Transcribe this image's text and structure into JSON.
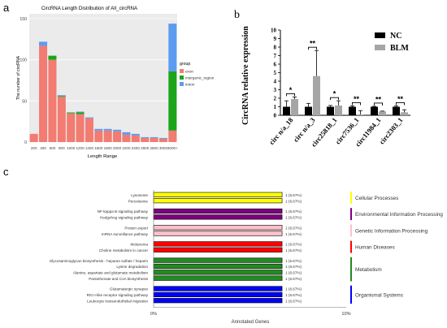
{
  "panels": {
    "a": "a",
    "b": "b",
    "c": "c"
  },
  "chart_data": [
    {
      "type": "bar",
      "stacked": true,
      "title": "CircRNA Length Distribution of All_circRNA",
      "xlabel": "Length Range",
      "ylabel": "The number of circRNA",
      "ylim": [
        0,
        150
      ],
      "yticks": [
        "0",
        "50",
        "100",
        "150"
      ],
      "categories": [
        "200",
        "400",
        "600",
        "800",
        "1000",
        "1200",
        "1400",
        "1600",
        "1800",
        "2000",
        "2200",
        "2400",
        "2600",
        "2800",
        "3000",
        "3000+"
      ],
      "series": [
        {
          "name": "exon",
          "color": "#f27b72",
          "values": [
            10,
            117,
            100,
            55,
            35,
            34,
            29,
            14,
            14,
            13,
            9,
            8,
            5,
            5,
            4,
            14
          ]
        },
        {
          "name": "intergenic_region",
          "color": "#1aa51a",
          "values": [
            0,
            0,
            5,
            1,
            1,
            2,
            0,
            0,
            0,
            0,
            0,
            0,
            0,
            0,
            0,
            72
          ]
        },
        {
          "name": "intron",
          "color": "#5b9cf0",
          "values": [
            0,
            5,
            0,
            1,
            0,
            1,
            1,
            2,
            2,
            2,
            3,
            2,
            1,
            1,
            1,
            58
          ]
        }
      ],
      "legend_title": "group",
      "legend_position": "right",
      "grid": true,
      "background": "#ebebeb"
    },
    {
      "type": "bar",
      "ylabel": "CircRNA relative expression",
      "ylim": [
        0,
        10
      ],
      "yticks": [
        "0",
        "1",
        "2",
        "3",
        "4",
        "5",
        "6",
        "7",
        "8",
        "9",
        "10"
      ],
      "categories": [
        "circ n/a_18",
        "circ n/a_3",
        "circ25818_1",
        "circ7536_1",
        "circ11984_1",
        "circ2303_1"
      ],
      "series": [
        {
          "name": "NC",
          "color": "#000000",
          "values": [
            1.0,
            1.0,
            1.0,
            1.0,
            1.0,
            1.0
          ],
          "errors": [
            0.7,
            0.4,
            0.15,
            0.1,
            0.05,
            0.1
          ]
        },
        {
          "name": "BLM",
          "color": "#a6a6a6",
          "values": [
            1.9,
            4.6,
            1.15,
            0.1,
            0.45,
            0.35
          ],
          "errors": [
            0.25,
            3.0,
            0.55,
            0.45,
            0.04,
            0.3
          ]
        }
      ],
      "significance": [
        "*",
        "**",
        "*",
        "**",
        "**",
        "**"
      ],
      "legend_position": "top-right"
    },
    {
      "type": "bar",
      "orientation": "horizontal",
      "xlabel": "Annotated Genes",
      "xlim": [
        0,
        10
      ],
      "xticks": [
        "0%",
        "10%"
      ],
      "categories": [
        "Lysosome",
        "Peroxisome",
        "NF-kappa B signaling pathway",
        "Hedgehog signaling pathway",
        "Protein export",
        "mRNA surveillance pathway",
        "Melanoma",
        "Choline metabolism in cancer",
        "Glycosaminoglycan biosynthesis - heparan sulfate / heparin",
        "Lysine degradation",
        "Alanine, aspartate and glutamate metabolism",
        "Pantothenate and CoA biosynthesis",
        "Glutamatergic synapse",
        "RIG-I-like receptor signaling pathway",
        "Leukocyte transendothelial migration"
      ],
      "values": [
        6.67,
        6.67,
        6.67,
        6.67,
        6.67,
        6.67,
        6.67,
        6.67,
        6.67,
        6.67,
        6.67,
        6.67,
        6.67,
        6.67,
        6.67
      ],
      "value_labels": [
        "1 (6.67%)",
        "1 (6.67%)",
        "1 (6.67%)",
        "1 (6.67%)",
        "1 (6.67%)",
        "1 (6.67%)",
        "1 (6.67%)",
        "1 (6.67%)",
        "1 (6.67%)",
        "1 (6.67%)",
        "1 (6.67%)",
        "1 (6.67%)",
        "1 (6.67%)",
        "1 (6.67%)",
        "1 (6.67%)"
      ],
      "groups": [
        {
          "name": "Cellular Processes",
          "color": "#ffff00",
          "count": 2
        },
        {
          "name": "Environmental Information Processing",
          "color": "#800080",
          "count": 2
        },
        {
          "name": "Genetic Information Processing",
          "color": "#ffc0cb",
          "count": 2
        },
        {
          "name": "Human Diseases",
          "color": "#ff0000",
          "count": 2
        },
        {
          "name": "Metabolism",
          "color": "#228b22",
          "count": 4
        },
        {
          "name": "Organismal Systems",
          "color": "#0000ff",
          "count": 3
        }
      ]
    }
  ]
}
